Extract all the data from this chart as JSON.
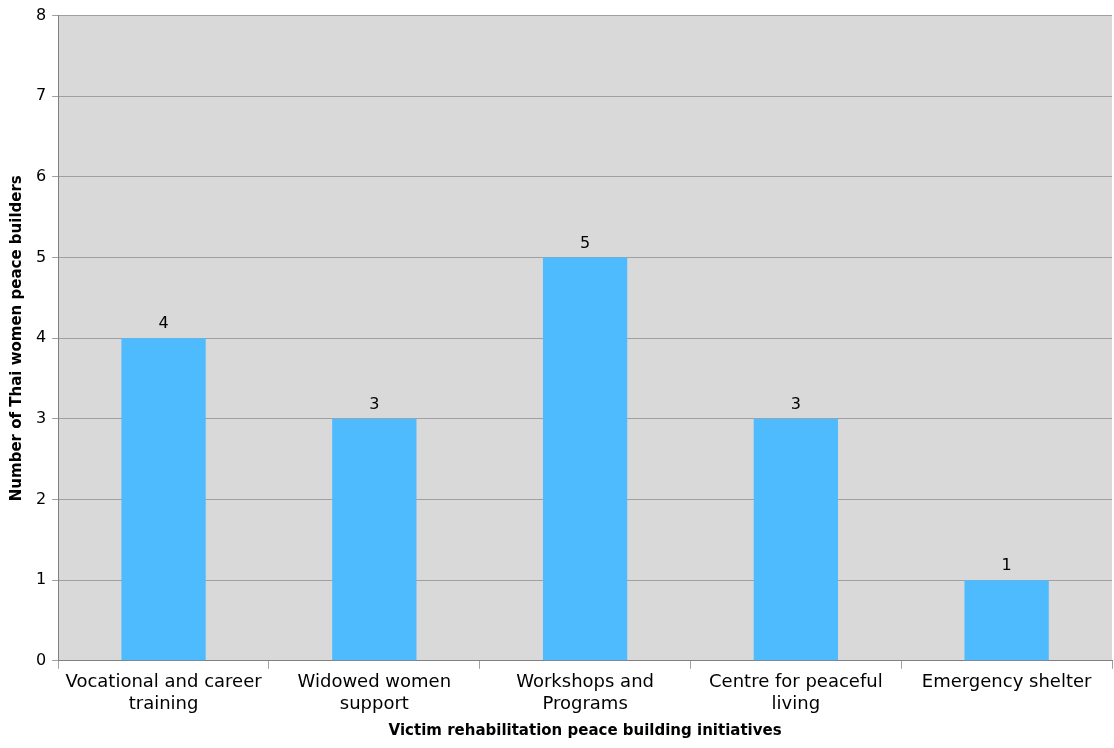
{
  "chart_data": {
    "type": "bar",
    "xlabel": "Victim rehabilitation peace building initiatives",
    "ylabel": "Number of Thai women peace builders",
    "categories": [
      "Vocational and career training",
      "Widowed women support",
      "Workshops and Programs",
      "Centre for peaceful living",
      "Emergency shelter"
    ],
    "values": [
      4,
      3,
      5,
      3,
      1
    ],
    "color": "#4fbbff",
    "ylim": [
      0,
      8
    ],
    "yticks": [
      0,
      1,
      2,
      3,
      4,
      5,
      6,
      7,
      8
    ],
    "grid": "y",
    "data_labels": true,
    "legend": false
  }
}
